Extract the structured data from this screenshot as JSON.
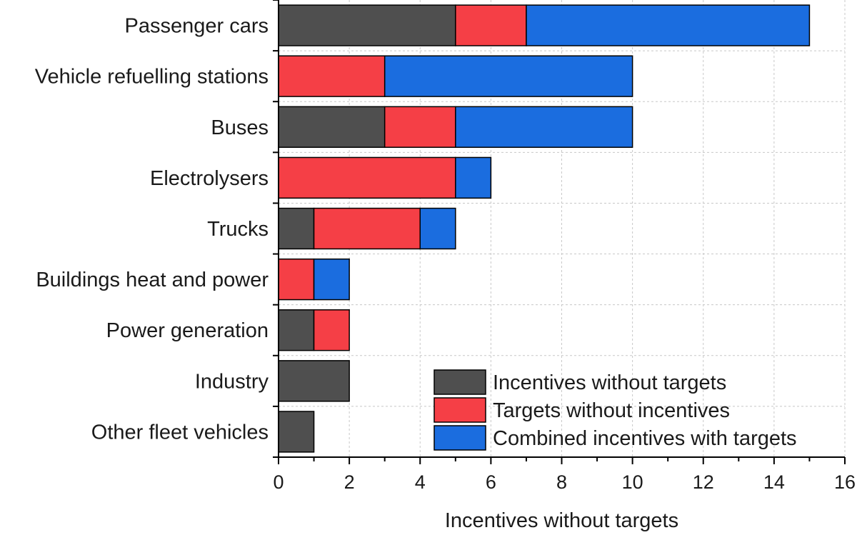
{
  "chart_data": {
    "type": "bar",
    "orientation": "horizontal",
    "stacked": true,
    "categories": [
      "Passenger cars",
      "Vehicle refuelling stations",
      "Buses",
      "Electrolysers",
      "Trucks",
      "Buildings heat and power",
      "Power generation",
      "Industry",
      "Other fleet vehicles"
    ],
    "series": [
      {
        "name": "Incentives without targets",
        "color": "#4f4f4f",
        "values": [
          5,
          0,
          3,
          0,
          1,
          0,
          1,
          2,
          1
        ]
      },
      {
        "name": "Targets without incentives",
        "color": "#f53f46",
        "values": [
          2,
          3,
          2,
          5,
          3,
          1,
          1,
          0,
          0
        ]
      },
      {
        "name": "Combined incentives with targets",
        "color": "#1b6ddf",
        "values": [
          8,
          7,
          5,
          1,
          1,
          1,
          0,
          0,
          0
        ]
      }
    ],
    "xlabel": "Incentives without targets",
    "ylabel": "",
    "xlim": [
      0,
      16
    ],
    "xticks": [
      0,
      2,
      4,
      6,
      8,
      10,
      12,
      14,
      16
    ],
    "grid": true,
    "legend_position": "bottom-right"
  }
}
